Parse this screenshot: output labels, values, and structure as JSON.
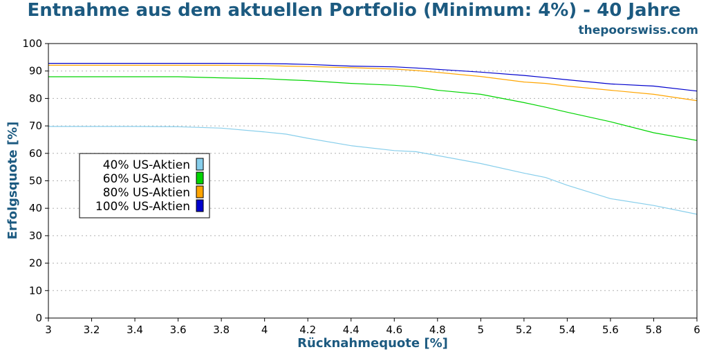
{
  "site": "thepoorswiss.com",
  "chart_data": {
    "type": "line",
    "title": "Entnahme aus dem aktuellen Portfolio (Minimum: 4%) - 40 Jahre",
    "xlabel": "Rücknahmequote [%]",
    "ylabel": "Erfolgsquote [%]",
    "xlim": [
      3,
      6
    ],
    "ylim": [
      0,
      100
    ],
    "xticks": [
      "3",
      "3.2",
      "3.4",
      "3.6",
      "3.8",
      "4",
      "4.2",
      "4.4",
      "4.6",
      "4.8",
      "5",
      "5.2",
      "5.4",
      "5.6",
      "5.8",
      "6"
    ],
    "yticks": [
      "0",
      "10",
      "20",
      "30",
      "40",
      "50",
      "60",
      "70",
      "80",
      "90",
      "100"
    ],
    "grid": true,
    "legend_position": "center-left",
    "x": [
      3.0,
      3.2,
      3.4,
      3.6,
      3.8,
      4.0,
      4.1,
      4.2,
      4.4,
      4.6,
      4.7,
      4.8,
      5.0,
      5.2,
      5.3,
      5.4,
      5.6,
      5.8,
      6.0
    ],
    "series": [
      {
        "name": "40% US-Aktien",
        "color": "#87ceeb",
        "values": [
          69.8,
          69.8,
          69.8,
          69.7,
          69.2,
          67.8,
          67.0,
          65.5,
          62.8,
          61.0,
          60.6,
          59.2,
          56.3,
          52.8,
          51.2,
          48.4,
          43.5,
          41.0,
          37.8
        ]
      },
      {
        "name": "60% US-Aktien",
        "color": "#00d400",
        "values": [
          87.9,
          87.9,
          87.9,
          87.9,
          87.5,
          87.2,
          86.8,
          86.5,
          85.5,
          84.8,
          84.2,
          83.0,
          81.5,
          78.5,
          76.8,
          75.0,
          71.5,
          67.5,
          64.7
        ]
      },
      {
        "name": "80% US-Aktien",
        "color": "#ffa500",
        "values": [
          92.1,
          92.1,
          92.1,
          92.1,
          92.1,
          92.0,
          91.8,
          91.6,
          91.2,
          90.7,
          90.2,
          89.5,
          88.0,
          86.0,
          85.5,
          84.5,
          83.0,
          81.5,
          79.2
        ]
      },
      {
        "name": "100% US-Aktien",
        "color": "#0000cd",
        "values": [
          92.8,
          92.8,
          92.8,
          92.8,
          92.8,
          92.7,
          92.6,
          92.4,
          91.8,
          91.5,
          91.1,
          90.6,
          89.6,
          88.4,
          87.6,
          86.8,
          85.3,
          84.5,
          82.7
        ]
      }
    ]
  }
}
